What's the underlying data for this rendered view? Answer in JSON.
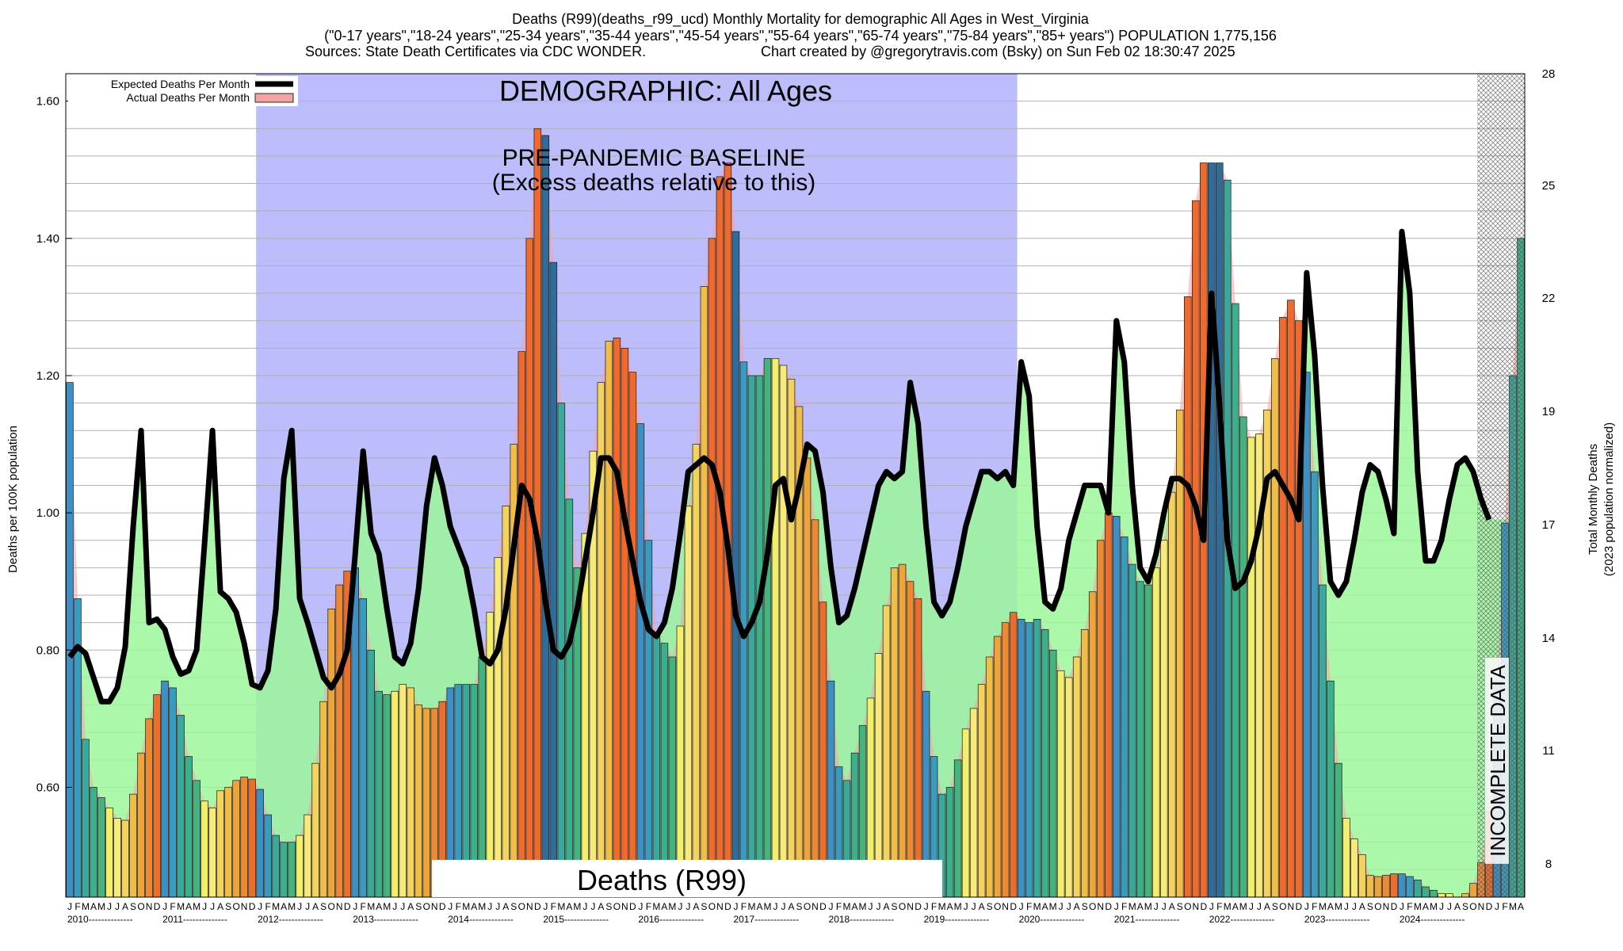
{
  "header": {
    "title_line1": "Deaths (R99)(deaths_r99_ucd) Monthly Mortality for demographic All Ages in West_Virginia",
    "title_line2": "(\"0-17 years\",\"18-24 years\",\"25-34 years\",\"35-44 years\",\"45-54 years\",\"55-64 years\",\"65-74 years\",\"75-84 years\",\"85+ years\") POPULATION 1,775,156",
    "title_line3_left": "Sources: State Death Certificates via CDC WONDER.",
    "title_line3_right": "Chart created by @gregorytravis.com (Bsky) on Sun Feb 02 18:30:47 2025"
  },
  "chart_data": {
    "type": "bar",
    "title": "Deaths (R99)(deaths_r99_ucd) Monthly Mortality for demographic All Ages in West_Virginia",
    "ylabel": "Deaths per 100K population",
    "y2label_line1": "Total Monthly Deaths",
    "y2label_line2": "(2023 population normalized)",
    "ylim": [
      0.44,
      1.64
    ],
    "yticks": [
      "0.60",
      "0.80",
      "1.00",
      "1.20",
      "1.40",
      "1.60"
    ],
    "y2ticks": [
      "8",
      "11",
      "14",
      "17",
      "19",
      "22",
      "25",
      "28"
    ],
    "x_start": "2010-01",
    "month_letters": [
      "J",
      "F",
      "M",
      "A",
      "M",
      "J",
      "J",
      "A",
      "S",
      "O",
      "N",
      "D"
    ],
    "years": [
      "2010",
      "2011",
      "2012",
      "2013",
      "2014",
      "2015",
      "2016",
      "2017",
      "2018",
      "2019",
      "2020",
      "2021",
      "2022",
      "2023",
      "2024"
    ],
    "grid": true,
    "legend_position": "top-left",
    "legend": {
      "expected": "Expected Deaths Per Month",
      "actual": "Actual Deaths Per Month"
    },
    "annotations": {
      "demographic": "DEMOGRAPHIC: All Ages",
      "baseline_line1": "PRE-PANDEMIC BASELINE",
      "baseline_line2": "(Excess deaths relative to this)",
      "bottom_label": "Deaths (R99)",
      "incomplete": "INCOMPLETE DATA"
    },
    "series": [
      {
        "name": "Actual Deaths Per Month",
        "values": [
          1.19,
          0.875,
          0.67,
          0.6,
          0.585,
          0.57,
          0.555,
          0.552,
          0.59,
          0.65,
          0.7,
          0.735,
          0.755,
          0.745,
          0.705,
          0.645,
          0.61,
          0.58,
          0.57,
          0.595,
          0.6,
          0.61,
          0.615,
          0.612,
          0.597,
          0.56,
          0.53,
          0.52,
          0.52,
          0.53,
          0.56,
          0.635,
          0.725,
          0.86,
          0.895,
          0.915,
          0.92,
          0.875,
          0.8,
          0.74,
          0.735,
          0.74,
          0.75,
          0.745,
          0.72,
          0.715,
          0.715,
          0.725,
          0.745,
          0.75,
          0.75,
          0.75,
          0.79,
          0.855,
          0.935,
          1.01,
          1.1,
          1.235,
          1.4,
          1.56,
          1.55,
          1.365,
          1.16,
          1.02,
          0.92,
          0.97,
          1.09,
          1.19,
          1.25,
          1.255,
          1.24,
          1.205,
          1.13,
          0.96,
          0.82,
          0.81,
          0.79,
          0.835,
          1.01,
          1.1,
          1.33,
          1.4,
          1.49,
          1.51,
          1.41,
          1.22,
          1.2,
          1.2,
          1.225,
          1.225,
          1.215,
          1.195,
          1.155,
          1.08,
          0.99,
          0.87,
          0.755,
          0.63,
          0.61,
          0.65,
          0.69,
          0.73,
          0.795,
          0.865,
          0.92,
          0.925,
          0.9,
          0.875,
          0.74,
          0.645,
          0.59,
          0.6,
          0.64,
          0.685,
          0.715,
          0.75,
          0.79,
          0.82,
          0.84,
          0.855,
          0.845,
          0.84,
          0.845,
          0.83,
          0.8,
          0.77,
          0.76,
          0.79,
          0.83,
          0.885,
          0.96,
          1.0,
          0.995,
          0.965,
          0.925,
          0.9,
          0.895,
          0.92,
          0.96,
          1.03,
          1.15,
          1.315,
          1.455,
          1.51,
          1.51,
          1.51,
          1.485,
          1.305,
          1.14,
          1.11,
          1.115,
          1.15,
          1.225,
          1.285,
          1.31,
          1.28,
          1.205,
          1.06,
          0.895,
          0.755,
          0.635,
          0.555,
          0.525,
          0.502,
          0.472,
          0.47,
          0.472,
          0.474,
          0.474,
          0.47,
          0.465,
          0.455,
          0.45,
          0.445,
          0.445,
          0.44,
          0.445,
          0.46,
          0.49,
          0.565,
          0.755,
          0.985,
          1.2,
          1.4
        ]
      },
      {
        "name": "Expected Deaths Per Month",
        "values": [
          0.79,
          0.805,
          0.795,
          0.76,
          0.725,
          0.725,
          0.745,
          0.805,
          0.98,
          1.12,
          0.84,
          0.845,
          0.83,
          0.79,
          0.765,
          0.77,
          0.8,
          0.955,
          1.12,
          0.885,
          0.875,
          0.855,
          0.81,
          0.75,
          0.745,
          0.77,
          0.86,
          1.05,
          1.12,
          0.875,
          0.84,
          0.8,
          0.76,
          0.745,
          0.765,
          0.8,
          0.94,
          1.09,
          0.97,
          0.94,
          0.86,
          0.79,
          0.78,
          0.81,
          0.89,
          1.01,
          1.08,
          1.04,
          0.98,
          0.95,
          0.92,
          0.86,
          0.79,
          0.78,
          0.8,
          0.86,
          0.95,
          1.04,
          1.02,
          0.96,
          0.87,
          0.8,
          0.79,
          0.81,
          0.86,
          0.93,
          1.0,
          1.08,
          1.08,
          1.06,
          0.99,
          0.93,
          0.87,
          0.83,
          0.82,
          0.84,
          0.89,
          0.97,
          1.06,
          1.07,
          1.08,
          1.07,
          1.03,
          0.95,
          0.85,
          0.82,
          0.84,
          0.87,
          0.94,
          1.04,
          1.05,
          0.99,
          1.04,
          1.1,
          1.09,
          1.03,
          0.92,
          0.84,
          0.85,
          0.89,
          0.94,
          0.99,
          1.04,
          1.06,
          1.05,
          1.06,
          1.19,
          1.13,
          0.98,
          0.87,
          0.85,
          0.87,
          0.92,
          0.98,
          1.02,
          1.06,
          1.06,
          1.05,
          1.06,
          1.04,
          1.22,
          1.17,
          0.98,
          0.87,
          0.86,
          0.89,
          0.96,
          1.0,
          1.04,
          1.04,
          1.04,
          1.0,
          1.28,
          1.22,
          1.04,
          0.92,
          0.9,
          0.94,
          1.0,
          1.05,
          1.05,
          1.04,
          1.01,
          0.96,
          1.32,
          1.16,
          0.96,
          0.89,
          0.9,
          0.93,
          0.98,
          1.05,
          1.06,
          1.04,
          1.02,
          0.99,
          1.35,
          1.23,
          1.04,
          0.9,
          0.88,
          0.9,
          0.96,
          1.03,
          1.07,
          1.06,
          1.02,
          0.97,
          1.41,
          1.32,
          1.06,
          0.93,
          0.93,
          0.96,
          1.02,
          1.07,
          1.08,
          1.06,
          1.02,
          0.99
        ]
      }
    ]
  }
}
